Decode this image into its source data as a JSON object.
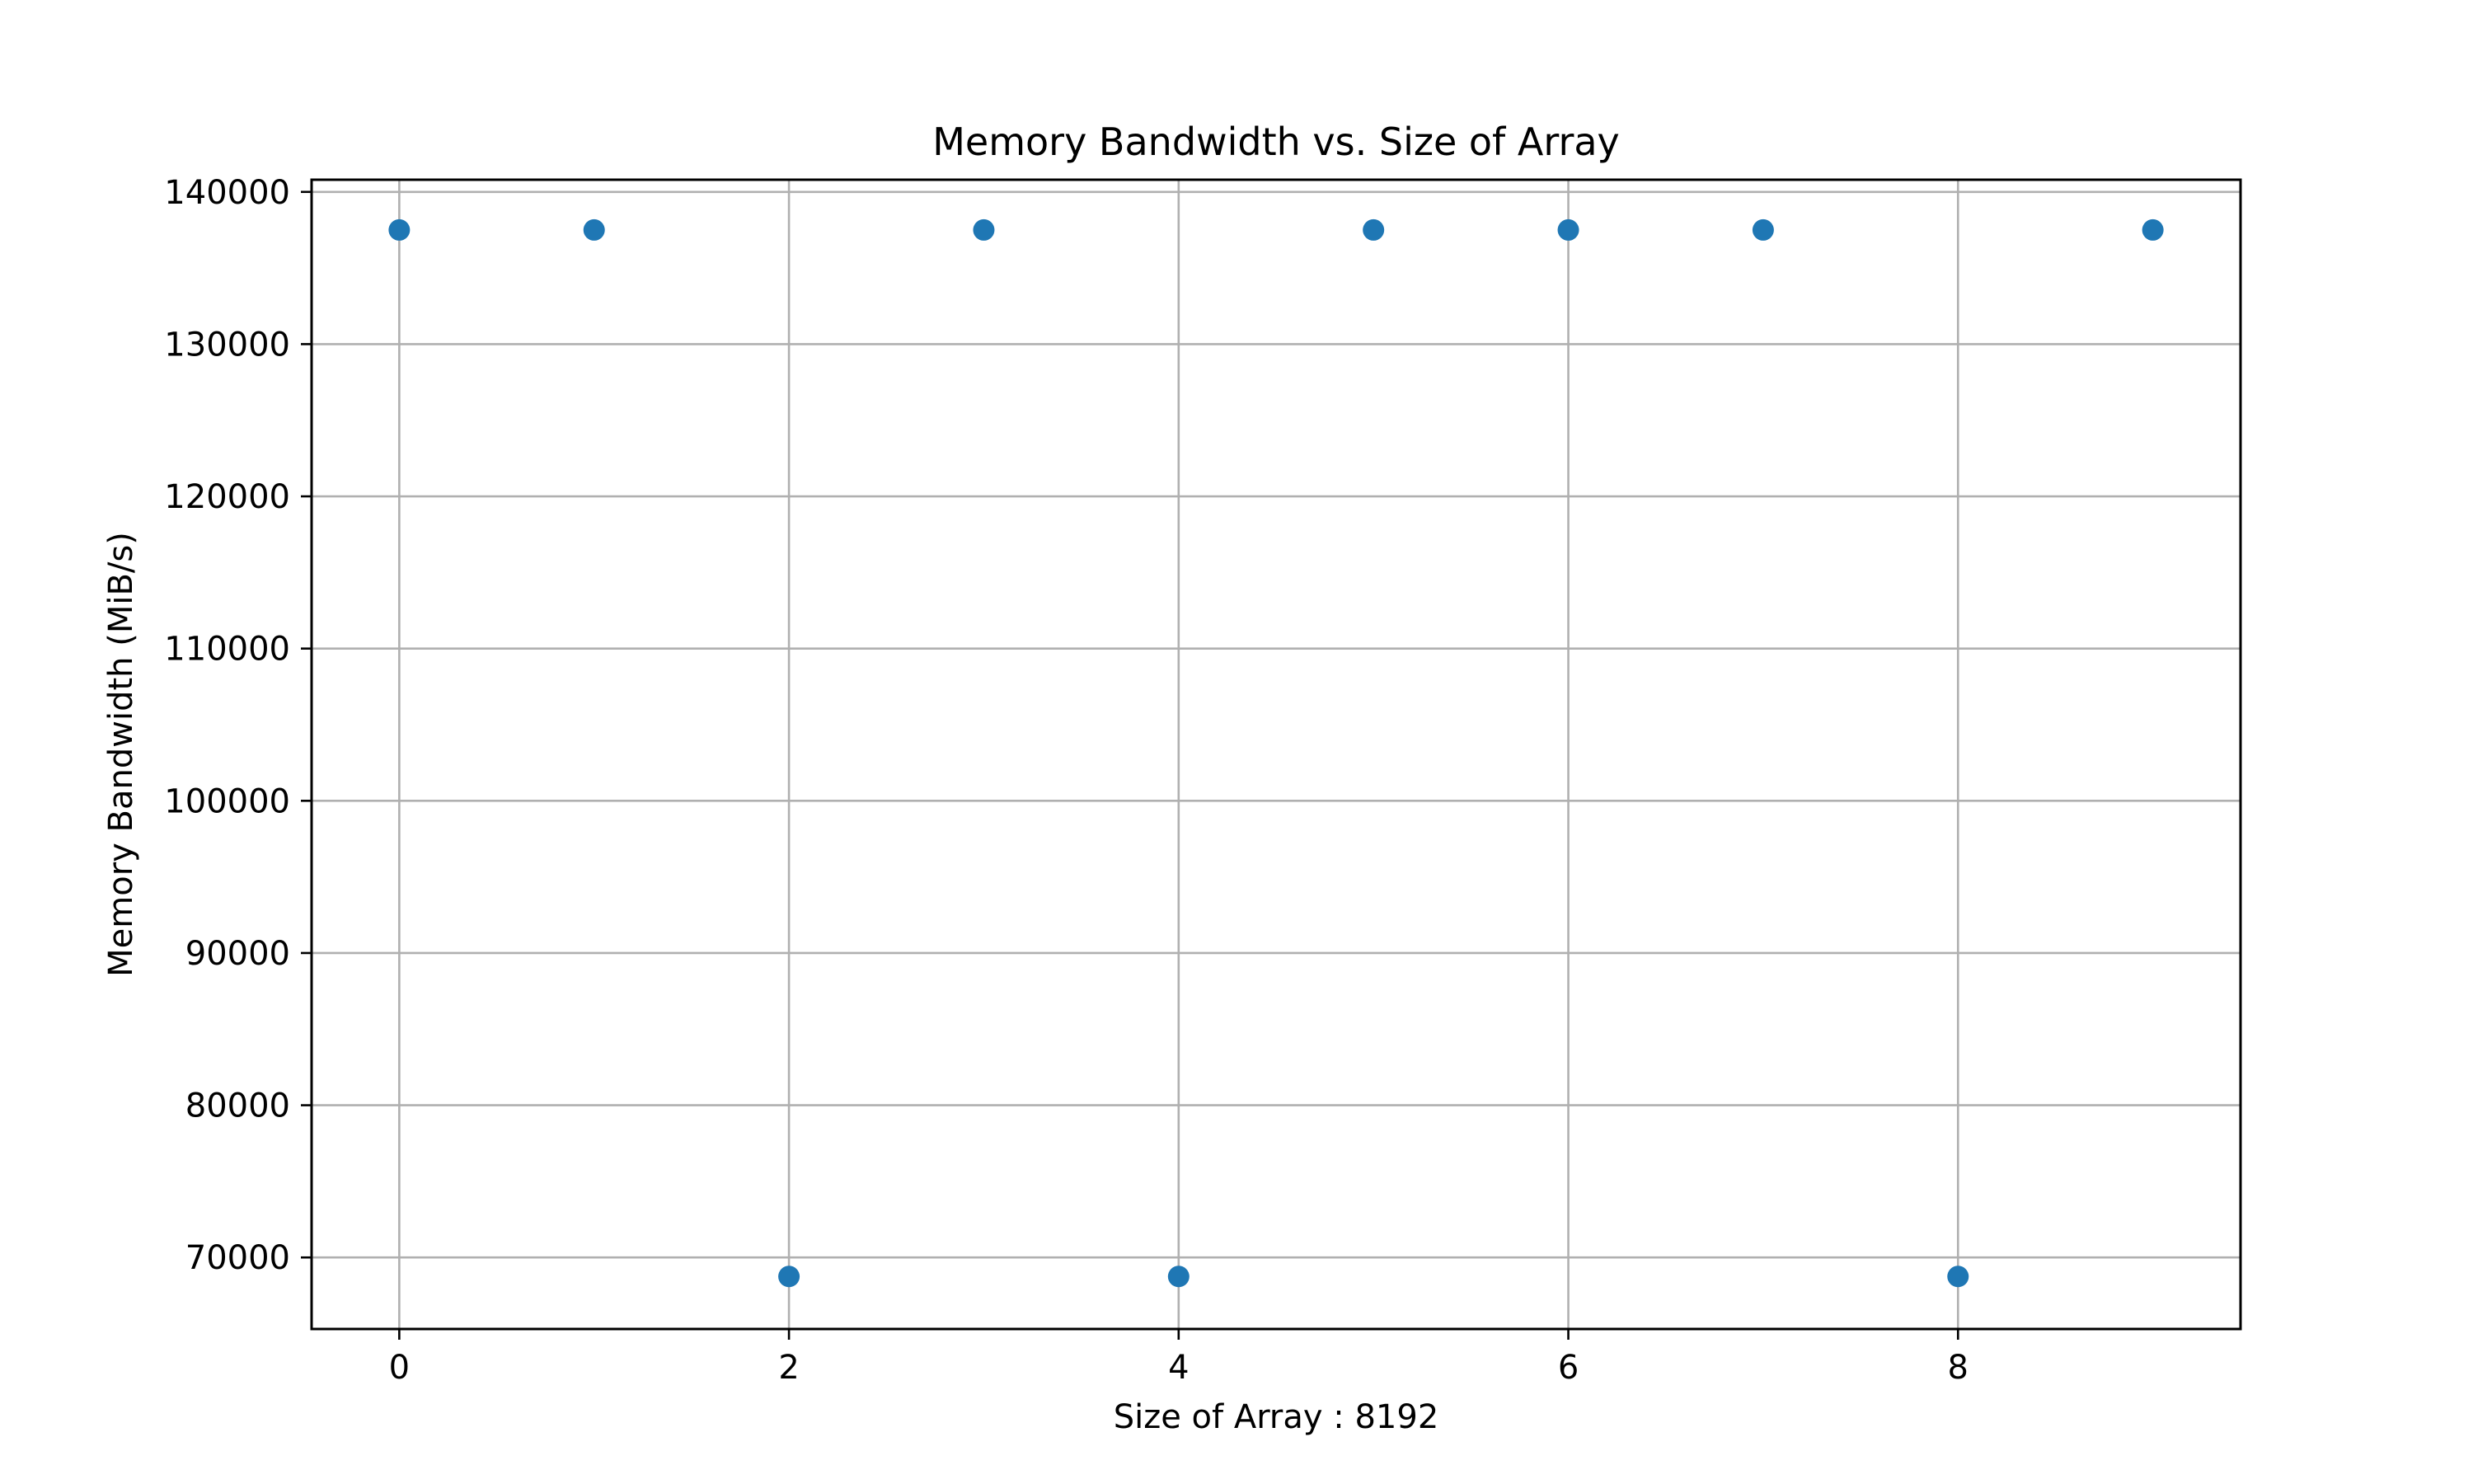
{
  "chart_data": {
    "type": "scatter",
    "title": "Memory Bandwidth vs. Size of Array",
    "xlabel": "Size of Array : 8192",
    "ylabel": "Memory Bandwidth (MiB/s)",
    "xlim": [
      -0.45,
      9.45
    ],
    "ylim": [
      65300,
      140800
    ],
    "xticks": [
      0,
      2,
      4,
      6,
      8
    ],
    "yticks": [
      70000,
      80000,
      90000,
      100000,
      110000,
      120000,
      130000,
      140000
    ],
    "grid": true,
    "marker_color": "#1f77b4",
    "points": [
      {
        "x": 0,
        "y": 137500
      },
      {
        "x": 1,
        "y": 137500
      },
      {
        "x": 2,
        "y": 68750
      },
      {
        "x": 3,
        "y": 137500
      },
      {
        "x": 4,
        "y": 68750
      },
      {
        "x": 5,
        "y": 137500
      },
      {
        "x": 6,
        "y": 137500
      },
      {
        "x": 7,
        "y": 137500
      },
      {
        "x": 8,
        "y": 68750
      },
      {
        "x": 9,
        "y": 137500
      }
    ]
  }
}
